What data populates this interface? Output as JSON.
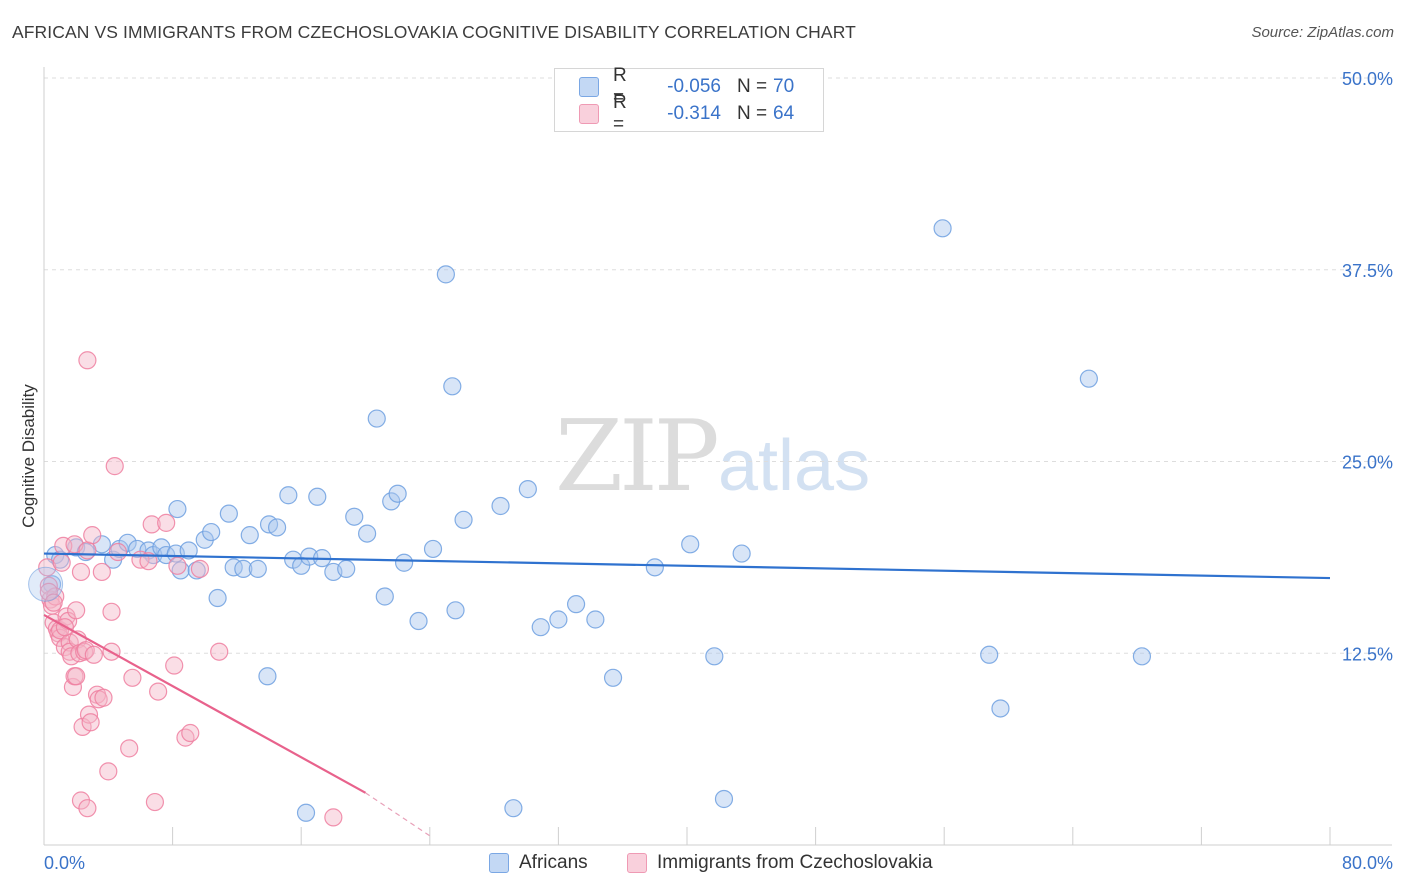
{
  "title": "AFRICAN VS IMMIGRANTS FROM CZECHOSLOVAKIA COGNITIVE DISABILITY CORRELATION CHART",
  "source": "Source: ZipAtlas.com",
  "watermark": {
    "zip": "ZIP",
    "atlas": "atlas"
  },
  "legend": {
    "rows": [
      {
        "r_label": "R =",
        "r_value": "-0.056",
        "n_label": "N =",
        "n_value": "70",
        "color": "#a9c6ee"
      },
      {
        "r_label": "R =",
        "r_value": " -0.314",
        "n_label": "N =",
        "n_value": "64",
        "color": "#f5b5c8"
      }
    ]
  },
  "bottom_legend": [
    {
      "label": "Africans",
      "color": "#a9c6ee"
    },
    {
      "label": "Immigrants from Czechoslovakia",
      "color": "#f5b5c8"
    }
  ],
  "chart_data": {
    "type": "scatter",
    "title": "AFRICAN VS IMMIGRANTS FROM CZECHOSLOVAKIA COGNITIVE DISABILITY CORRELATION CHART",
    "xlabel": "",
    "ylabel": "Cognitive Disability",
    "xlim": [
      0,
      80
    ],
    "ylim": [
      0,
      50
    ],
    "x_tick_labels": [
      "0.0%",
      "80.0%"
    ],
    "y_ticks": [
      12.5,
      25.0,
      37.5,
      50.0
    ],
    "y_tick_labels": [
      "12.5%",
      "25.0%",
      "37.5%",
      "50.0%"
    ],
    "grid": true,
    "series": [
      {
        "name": "Africans",
        "color": "#6fa0e0",
        "fill": "#a9c6ee",
        "trend": {
          "x0": 0,
          "y0": 19.0,
          "x1": 80,
          "y1": 17.4
        },
        "points": [
          [
            0.5,
            17.0
          ],
          [
            0.7,
            18.9
          ],
          [
            1.0,
            18.6
          ],
          [
            2.0,
            19.4
          ],
          [
            2.6,
            19.1
          ],
          [
            3.6,
            19.6
          ],
          [
            4.3,
            18.6
          ],
          [
            4.7,
            19.3
          ],
          [
            5.2,
            19.7
          ],
          [
            5.8,
            19.3
          ],
          [
            6.5,
            19.2
          ],
          [
            6.8,
            18.9
          ],
          [
            7.3,
            19.4
          ],
          [
            7.6,
            18.9
          ],
          [
            8.2,
            19.0
          ],
          [
            8.3,
            21.9
          ],
          [
            8.5,
            17.9
          ],
          [
            9.0,
            19.2
          ],
          [
            9.5,
            17.9
          ],
          [
            10.0,
            19.9
          ],
          [
            10.4,
            20.4
          ],
          [
            10.8,
            16.1
          ],
          [
            11.5,
            21.6
          ],
          [
            11.8,
            18.1
          ],
          [
            12.4,
            18.0
          ],
          [
            12.8,
            20.2
          ],
          [
            13.3,
            18.0
          ],
          [
            14.0,
            20.9
          ],
          [
            14.5,
            20.7
          ],
          [
            15.2,
            22.8
          ],
          [
            15.5,
            18.6
          ],
          [
            16.0,
            18.2
          ],
          [
            16.5,
            18.8
          ],
          [
            17.0,
            22.7
          ],
          [
            17.3,
            18.7
          ],
          [
            18.0,
            17.8
          ],
          [
            18.8,
            18.0
          ],
          [
            19.3,
            21.4
          ],
          [
            20.1,
            20.3
          ],
          [
            20.7,
            27.8
          ],
          [
            21.2,
            16.2
          ],
          [
            21.6,
            22.4
          ],
          [
            22.0,
            22.9
          ],
          [
            22.4,
            18.4
          ],
          [
            23.3,
            14.6
          ],
          [
            24.2,
            19.3
          ],
          [
            25.0,
            37.2
          ],
          [
            25.4,
            29.9
          ],
          [
            25.6,
            15.3
          ],
          [
            26.1,
            21.2
          ],
          [
            28.4,
            22.1
          ],
          [
            29.2,
            2.4
          ],
          [
            30.1,
            23.2
          ],
          [
            30.9,
            14.2
          ],
          [
            32.0,
            14.7
          ],
          [
            33.1,
            15.7
          ],
          [
            34.3,
            14.7
          ],
          [
            35.4,
            10.9
          ],
          [
            38.0,
            18.1
          ],
          [
            40.2,
            19.6
          ],
          [
            41.7,
            12.3
          ],
          [
            42.3,
            3.0
          ],
          [
            43.4,
            19.0
          ],
          [
            13.9,
            11.0
          ],
          [
            16.3,
            2.1
          ],
          [
            55.9,
            40.2
          ],
          [
            58.8,
            12.4
          ],
          [
            59.5,
            8.9
          ],
          [
            65.0,
            30.4
          ],
          [
            68.3,
            12.3
          ]
        ]
      },
      {
        "name": "Immigrants from Czechoslovakia",
        "color": "#ee7fa0",
        "fill": "#f5b5c8",
        "trend": {
          "x0": 0,
          "y0": 15.0,
          "x1": 20,
          "y1": 3.4,
          "dash_to_x": 24,
          "dash_to_y": 0.6
        },
        "points": [
          [
            0.2,
            18.1
          ],
          [
            0.3,
            16.9
          ],
          [
            0.4,
            16.0
          ],
          [
            0.5,
            15.6
          ],
          [
            0.6,
            14.5
          ],
          [
            0.7,
            16.2
          ],
          [
            0.8,
            14.1
          ],
          [
            0.9,
            13.8
          ],
          [
            1.0,
            13.5
          ],
          [
            1.0,
            14.0
          ],
          [
            1.1,
            18.4
          ],
          [
            1.2,
            19.5
          ],
          [
            1.3,
            12.9
          ],
          [
            1.4,
            14.9
          ],
          [
            1.5,
            14.6
          ],
          [
            1.6,
            13.2
          ],
          [
            1.6,
            12.6
          ],
          [
            1.7,
            12.3
          ],
          [
            1.8,
            10.3
          ],
          [
            1.9,
            19.6
          ],
          [
            1.9,
            11.0
          ],
          [
            2.0,
            15.3
          ],
          [
            2.0,
            11.0
          ],
          [
            2.1,
            13.4
          ],
          [
            2.2,
            12.5
          ],
          [
            2.3,
            17.8
          ],
          [
            2.4,
            7.7
          ],
          [
            2.5,
            12.6
          ],
          [
            2.6,
            12.7
          ],
          [
            2.7,
            19.2
          ],
          [
            2.8,
            8.5
          ],
          [
            2.9,
            8.0
          ],
          [
            3.0,
            20.2
          ],
          [
            3.1,
            12.4
          ],
          [
            3.3,
            9.8
          ],
          [
            3.4,
            9.5
          ],
          [
            3.6,
            17.8
          ],
          [
            3.7,
            9.6
          ],
          [
            4.0,
            4.8
          ],
          [
            4.2,
            12.6
          ],
          [
            4.2,
            15.2
          ],
          [
            4.4,
            24.7
          ],
          [
            2.7,
            31.6
          ],
          [
            0.3,
            16.5
          ],
          [
            0.6,
            15.8
          ],
          [
            1.3,
            14.2
          ],
          [
            2.3,
            2.9
          ],
          [
            2.7,
            2.4
          ],
          [
            4.6,
            19.1
          ],
          [
            5.3,
            6.3
          ],
          [
            5.5,
            10.9
          ],
          [
            6.0,
            18.6
          ],
          [
            6.5,
            18.5
          ],
          [
            6.7,
            20.9
          ],
          [
            7.1,
            10.0
          ],
          [
            7.6,
            21.0
          ],
          [
            6.9,
            2.8
          ],
          [
            8.1,
            11.7
          ],
          [
            8.3,
            18.2
          ],
          [
            8.8,
            7.0
          ],
          [
            9.1,
            7.3
          ],
          [
            9.7,
            18.0
          ],
          [
            10.9,
            12.6
          ],
          [
            18.0,
            1.8
          ]
        ]
      }
    ]
  }
}
